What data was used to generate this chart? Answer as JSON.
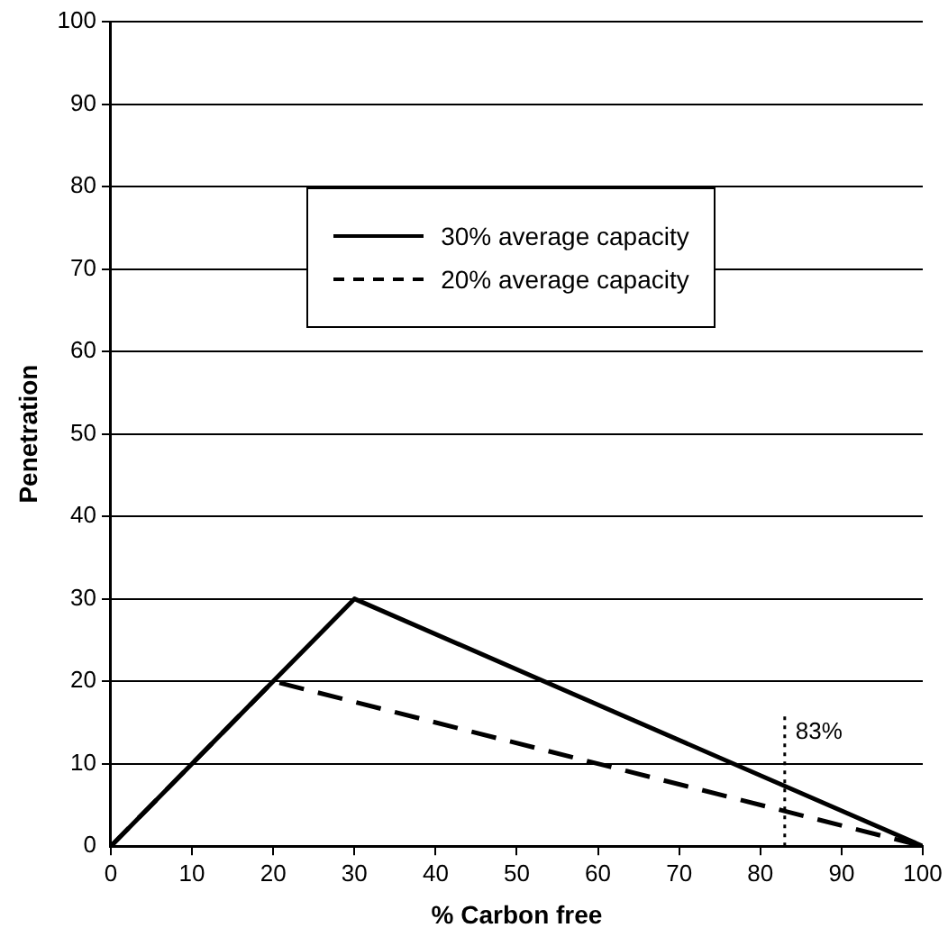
{
  "chart_data": {
    "type": "line",
    "xlabel": "% Carbon free",
    "ylabel": "Penetration",
    "xlim": [
      0,
      100
    ],
    "xticks": [
      0,
      10,
      20,
      30,
      40,
      50,
      60,
      70,
      80,
      90,
      100
    ],
    "ylim": [
      0,
      100
    ],
    "yticks": [
      0,
      10,
      20,
      30,
      40,
      50,
      60,
      70,
      80,
      90,
      100
    ],
    "series": [
      {
        "name": "30% average capacity",
        "color": "#000000",
        "x": [
          0,
          30,
          100
        ],
        "values": [
          0,
          30,
          0
        ],
        "line_style": "solid"
      },
      {
        "name": "20% average capacity",
        "color": "#000000",
        "x": [
          0,
          20,
          100
        ],
        "values": [
          0,
          20,
          0
        ],
        "line_style": "dashed"
      }
    ],
    "ref_lines": [
      {
        "axis": "x",
        "value": 83,
        "label": "83%",
        "line_style": "dotted",
        "color": "#000000"
      }
    ],
    "grid": "y",
    "legend": "top",
    "marker": "none"
  }
}
